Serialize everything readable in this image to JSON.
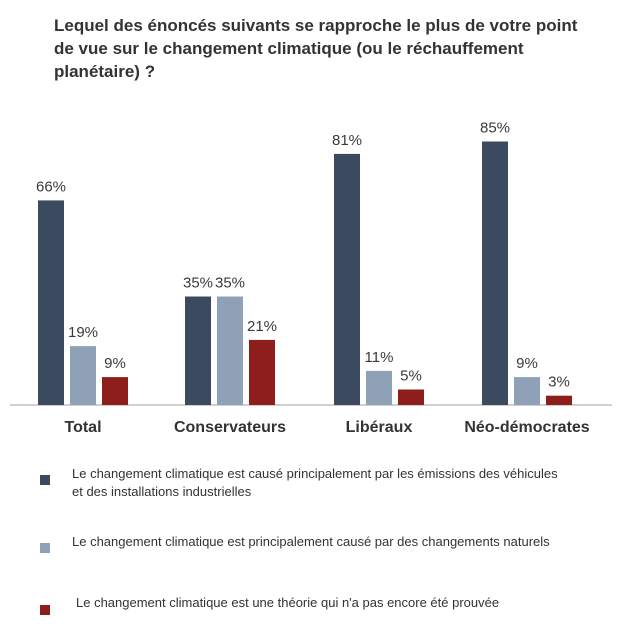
{
  "title": "Lequel des énoncés suivants se rapproche le plus de votre point de vue sur le changement climatique (ou le réchauffement planétaire) ?",
  "colors": {
    "series": [
      "#3c4a60",
      "#8fa1b7",
      "#8e1e1c"
    ],
    "axis": "#bfbfbf"
  },
  "chart_data": {
    "type": "bar",
    "title": "Lequel des énoncés suivants se rapproche le plus de votre point de vue sur le changement climatique (ou le réchauffement planétaire) ?",
    "categories": [
      "Total",
      "Conservateurs",
      "Libéraux",
      "Néo-démocrates"
    ],
    "series": [
      {
        "name": "Le changement climatique est causé principalement par les émissions des véhicules et des installations industrielles",
        "values": [
          66,
          35,
          81,
          85
        ],
        "labels": [
          "66%",
          "35%",
          "81%",
          "85%"
        ]
      },
      {
        "name": "Le changement climatique est principalement causé par des changements naturels",
        "values": [
          19,
          35,
          11,
          9
        ],
        "labels": [
          "19%",
          "35%",
          "11%",
          "9%"
        ]
      },
      {
        "name": "Le changement climatique est une théorie qui n'a pas encore été prouvée",
        "values": [
          9,
          21,
          5,
          3
        ],
        "labels": [
          "9%",
          "21%",
          "5%",
          "3%"
        ]
      }
    ],
    "ylim": [
      0,
      100
    ],
    "grid": false,
    "legend_position": "bottom"
  }
}
